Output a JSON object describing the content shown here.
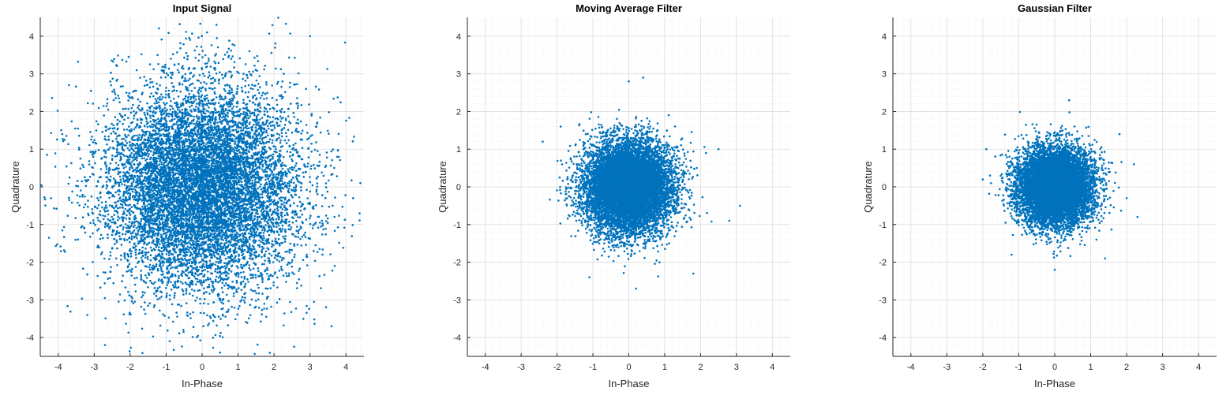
{
  "chart_data": [
    {
      "type": "scatter",
      "title": "Input Signal",
      "xlabel": "In-Phase",
      "ylabel": "Quadrature",
      "xlim": [
        -4.5,
        4.5
      ],
      "ylim": [
        -4.5,
        4.5
      ],
      "xticks": [
        -4,
        -3,
        -2,
        -1,
        0,
        1,
        2,
        3,
        4
      ],
      "yticks": [
        -4,
        -3,
        -2,
        -1,
        0,
        1,
        2,
        3,
        4
      ],
      "grid": true,
      "minor_grid": true,
      "marker_color": "#0072bd",
      "distribution": {
        "shape": "gaussian-cloud",
        "center": [
          0,
          0
        ],
        "std": 1.35,
        "count": 10000
      },
      "sample_points": [
        [
          0.4,
          4.3
        ],
        [
          -4.2,
          -0.3
        ],
        [
          4.4,
          0.1
        ],
        [
          -2.7,
          -4.2
        ],
        [
          0.5,
          -4.4
        ],
        [
          3.0,
          4.0
        ],
        [
          -0.9,
          -4.1
        ],
        [
          3.6,
          -3.7
        ],
        [
          -3.7,
          2.7
        ],
        [
          4.2,
          -0.3
        ]
      ]
    },
    {
      "type": "scatter",
      "title": "Moving Average Filter",
      "xlabel": "In-Phase",
      "ylabel": "Quadrature",
      "xlim": [
        -4.5,
        4.5
      ],
      "ylim": [
        -4.5,
        4.5
      ],
      "xticks": [
        -4,
        -3,
        -2,
        -1,
        0,
        1,
        2,
        3,
        4
      ],
      "yticks": [
        -4,
        -3,
        -2,
        -1,
        0,
        1,
        2,
        3,
        4
      ],
      "grid": true,
      "minor_grid": true,
      "marker_color": "#0072bd",
      "distribution": {
        "shape": "gaussian-cloud",
        "center": [
          0,
          0
        ],
        "std": 0.6,
        "count": 10000
      },
      "sample_points": [
        [
          0.0,
          2.8
        ],
        [
          3.1,
          -0.5
        ],
        [
          2.8,
          -0.9
        ],
        [
          -2.4,
          1.2
        ],
        [
          0.2,
          -2.7
        ],
        [
          1.8,
          -2.3
        ],
        [
          2.5,
          1.0
        ],
        [
          -1.1,
          -2.4
        ],
        [
          0.4,
          2.9
        ],
        [
          -1.9,
          1.6
        ]
      ]
    },
    {
      "type": "scatter",
      "title": "Gaussian Filter",
      "xlabel": "In-Phase",
      "ylabel": "Quadrature",
      "xlim": [
        -4.5,
        4.5
      ],
      "ylim": [
        -4.5,
        4.5
      ],
      "xticks": [
        -4,
        -3,
        -2,
        -1,
        0,
        1,
        2,
        3,
        4
      ],
      "yticks": [
        -4,
        -3,
        -2,
        -1,
        0,
        1,
        2,
        3,
        4
      ],
      "grid": true,
      "minor_grid": true,
      "marker_color": "#0072bd",
      "distribution": {
        "shape": "gaussian-cloud",
        "center": [
          0,
          0
        ],
        "std": 0.5,
        "count": 10000
      },
      "sample_points": [
        [
          -1.9,
          1.0
        ],
        [
          2.3,
          -0.8
        ],
        [
          2.2,
          0.6
        ],
        [
          0.4,
          2.3
        ],
        [
          -1.8,
          0.3
        ],
        [
          0.0,
          -2.2
        ],
        [
          1.4,
          -1.9
        ],
        [
          -1.2,
          -1.8
        ],
        [
          1.8,
          1.4
        ],
        [
          2.0,
          -0.3
        ]
      ]
    }
  ]
}
